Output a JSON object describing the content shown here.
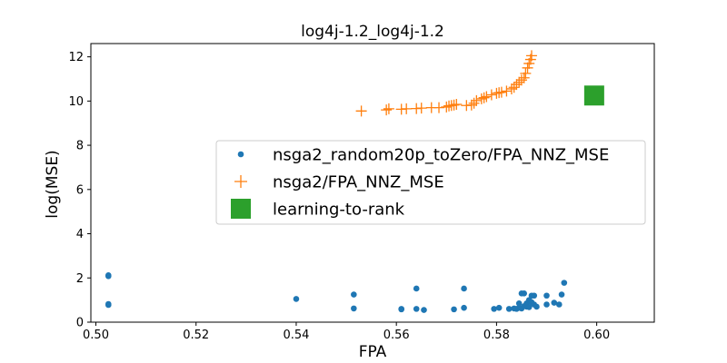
{
  "chart_data": {
    "type": "scatter",
    "title": "log4j-1.2_log4j-1.2",
    "xlabel": "FPA",
    "ylabel": "log(MSE)",
    "xlim": [
      0.499,
      0.6115
    ],
    "ylim": [
      0,
      12.6
    ],
    "xticks": [
      "0.50",
      "0.52",
      "0.54",
      "0.56",
      "0.58",
      "0.60"
    ],
    "xtick_values": [
      0.5,
      0.52,
      0.54,
      0.56,
      0.58,
      0.6
    ],
    "yticks": [
      "0",
      "2",
      "4",
      "6",
      "8",
      "10",
      "12"
    ],
    "ytick_values": [
      0,
      2,
      4,
      6,
      8,
      10,
      12
    ],
    "grid": false,
    "legend_position": "center-right",
    "series": [
      {
        "name": "nsga2_random20p_toZero/FPA_NNZ_MSE",
        "marker": "circle",
        "color": "#1f77b4",
        "points": [
          [
            0.5025,
            2.12
          ],
          [
            0.5025,
            2.08
          ],
          [
            0.5025,
            0.82
          ],
          [
            0.5025,
            0.78
          ],
          [
            0.54,
            1.05
          ],
          [
            0.5515,
            1.25
          ],
          [
            0.5515,
            0.62
          ],
          [
            0.561,
            0.58
          ],
          [
            0.561,
            0.6
          ],
          [
            0.564,
            1.52
          ],
          [
            0.564,
            0.6
          ],
          [
            0.5655,
            0.55
          ],
          [
            0.5715,
            0.58
          ],
          [
            0.5735,
            1.52
          ],
          [
            0.5735,
            0.65
          ],
          [
            0.5795,
            0.6
          ],
          [
            0.5805,
            0.65
          ],
          [
            0.5825,
            0.6
          ],
          [
            0.5835,
            0.62
          ],
          [
            0.584,
            0.6
          ],
          [
            0.5845,
            0.65
          ],
          [
            0.585,
            0.62
          ],
          [
            0.5845,
            0.85
          ],
          [
            0.585,
            1.3
          ],
          [
            0.5855,
            1.3
          ],
          [
            0.5855,
            0.72
          ],
          [
            0.586,
            0.7
          ],
          [
            0.586,
            0.85
          ],
          [
            0.5865,
            1.0
          ],
          [
            0.5865,
            0.68
          ],
          [
            0.587,
            0.9
          ],
          [
            0.587,
            1.2
          ],
          [
            0.5875,
            1.2
          ],
          [
            0.5875,
            0.8
          ],
          [
            0.588,
            0.7
          ],
          [
            0.59,
            1.2
          ],
          [
            0.59,
            0.8
          ],
          [
            0.5915,
            0.88
          ],
          [
            0.5925,
            0.8
          ],
          [
            0.593,
            1.25
          ],
          [
            0.5935,
            1.78
          ]
        ]
      },
      {
        "name": "nsga2/FPA_NNZ_MSE",
        "marker": "plus",
        "color": "#ff7f0e",
        "points": [
          [
            0.553,
            9.55
          ],
          [
            0.558,
            9.6
          ],
          [
            0.5585,
            9.65
          ],
          [
            0.561,
            9.63
          ],
          [
            0.562,
            9.65
          ],
          [
            0.564,
            9.66
          ],
          [
            0.565,
            9.68
          ],
          [
            0.567,
            9.7
          ],
          [
            0.5685,
            9.7
          ],
          [
            0.57,
            9.73
          ],
          [
            0.5705,
            9.78
          ],
          [
            0.571,
            9.8
          ],
          [
            0.5715,
            9.82
          ],
          [
            0.572,
            9.85
          ],
          [
            0.574,
            9.8
          ],
          [
            0.575,
            9.82
          ],
          [
            0.5755,
            9.9
          ],
          [
            0.576,
            10.02
          ],
          [
            0.577,
            10.1
          ],
          [
            0.5775,
            10.15
          ],
          [
            0.578,
            10.2
          ],
          [
            0.579,
            10.28
          ],
          [
            0.58,
            10.35
          ],
          [
            0.5805,
            10.38
          ],
          [
            0.581,
            10.4
          ],
          [
            0.582,
            10.45
          ],
          [
            0.583,
            10.55
          ],
          [
            0.5835,
            10.62
          ],
          [
            0.584,
            10.75
          ],
          [
            0.5845,
            10.85
          ],
          [
            0.585,
            10.95
          ],
          [
            0.5855,
            11.05
          ],
          [
            0.5858,
            11.25
          ],
          [
            0.5862,
            11.5
          ],
          [
            0.5865,
            11.7
          ],
          [
            0.5868,
            11.88
          ],
          [
            0.587,
            12.05
          ]
        ]
      },
      {
        "name": "learning-to-rank",
        "marker": "square",
        "color": "#2ca02c",
        "points": [
          [
            0.5995,
            10.25
          ]
        ]
      }
    ]
  }
}
